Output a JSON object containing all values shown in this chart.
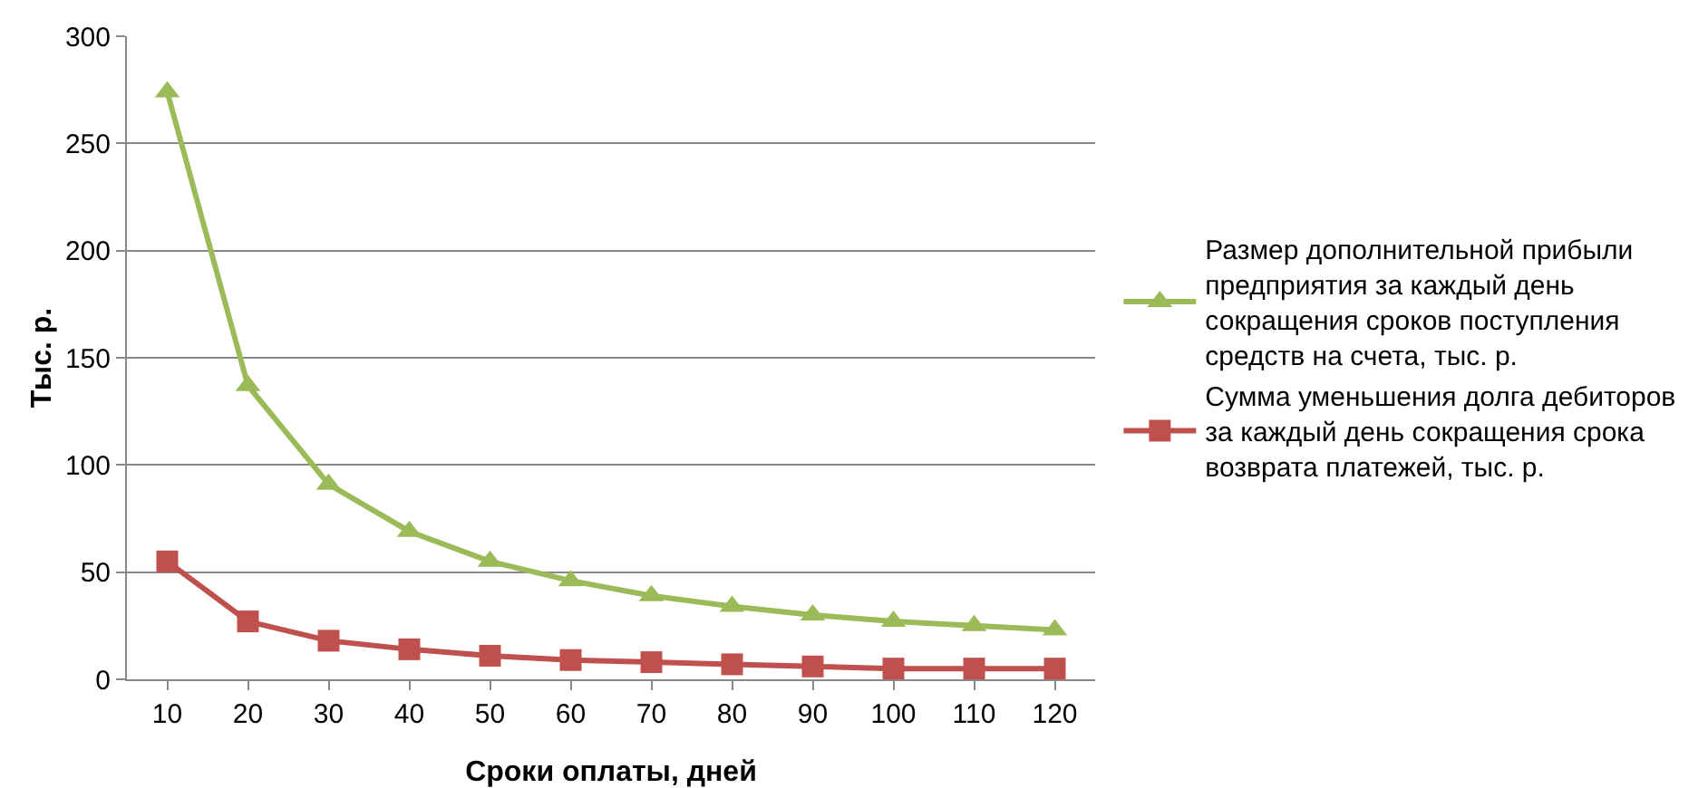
{
  "chart_data": {
    "type": "line",
    "xlabel": "Сроки оплаты, дней",
    "ylabel": "Тыс. р.",
    "categories": [
      "10",
      "20",
      "30",
      "40",
      "50",
      "60",
      "70",
      "80",
      "90",
      "100",
      "110",
      "120"
    ],
    "ylim": [
      0,
      300
    ],
    "yticks": [
      0,
      50,
      100,
      150,
      200,
      250,
      300
    ],
    "grid": "y",
    "legend": "right",
    "line_style": "solid",
    "series": [
      {
        "name": "Размер дополнительной прибыли предприятия за каждый день сокращения сроков поступления средств на счета, тыс. р.",
        "color": "#9bbb59",
        "marker": "triangle",
        "values": [
          274,
          137,
          91,
          69,
          55,
          46,
          39,
          34,
          30,
          27,
          25,
          23
        ]
      },
      {
        "name": "Сумма уменьшения долга дебиторов за каждый день сокращения срока возврата платежей, тыс. р.",
        "color": "#c0504d",
        "marker": "square",
        "values": [
          55,
          27,
          18,
          14,
          11,
          9,
          8,
          7,
          6,
          5,
          5,
          5
        ]
      }
    ]
  }
}
